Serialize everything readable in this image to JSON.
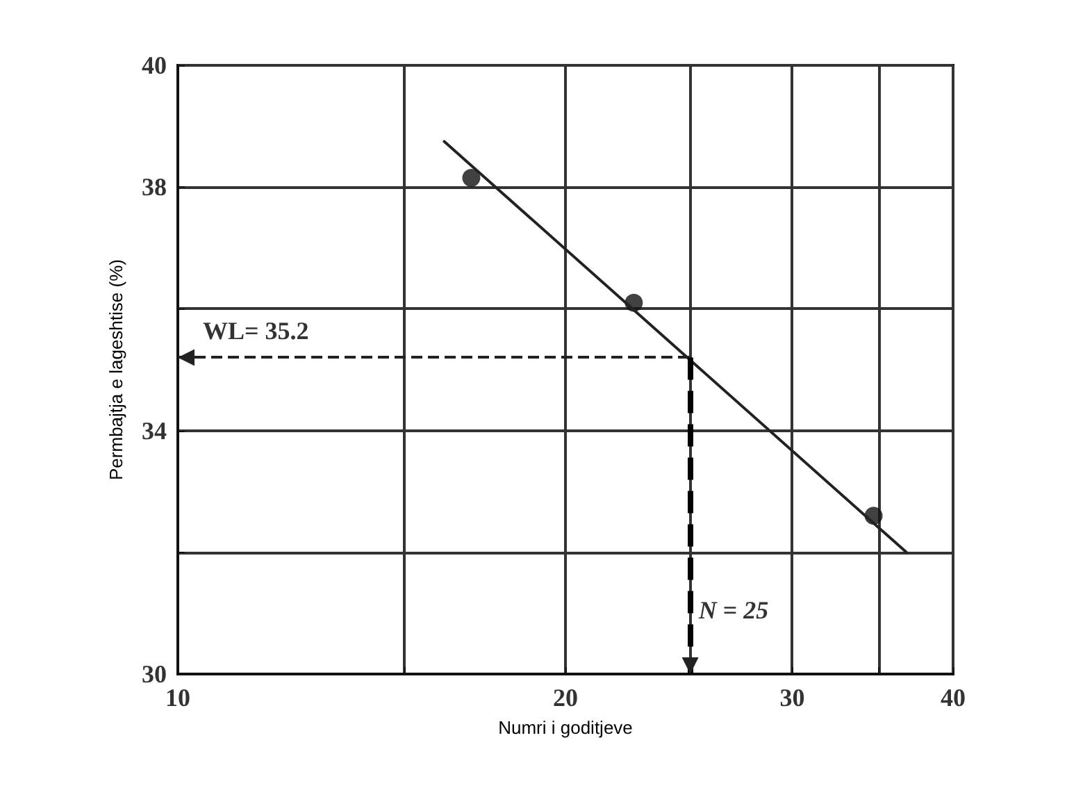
{
  "chart_data": {
    "type": "scatter",
    "xlabel": "Numri i goditjeve",
    "ylabel": "Permbajtja e lageshtise (%)",
    "log": "x",
    "xlim": [
      10,
      40
    ],
    "xticks": [
      10,
      {
        "value": 15,
        "label": null
      },
      20,
      {
        "value": 25,
        "label": null
      },
      30,
      {
        "value": 35,
        "label": null
      },
      40
    ],
    "ylim": [
      30,
      40
    ],
    "yticks": [
      30,
      {
        "value": 32,
        "label": null
      },
      34,
      {
        "value": 36,
        "label": null
      },
      38,
      40
    ],
    "grid": true,
    "marker": "circle",
    "series": [
      {
        "color": "#111111",
        "x": [
          16.9,
          22.6,
          34.7
        ],
        "values": [
          38.15,
          36.1,
          32.6
        ]
      },
      {
        "type": "line",
        "color": "#222222",
        "marker": "none",
        "line_style": "solid",
        "x": [
          16.1,
          36.8
        ],
        "values": [
          38.75,
          32.0
        ]
      }
    ],
    "ref_lines": [
      {
        "axis": "y",
        "value": 35.2,
        "label": "WL= 35.2",
        "line_style": "dashed",
        "color": "#222222"
      },
      {
        "axis": "x",
        "value": 25,
        "label": "N = 25",
        "line_style": "dashed",
        "color": "#000000"
      }
    ]
  }
}
